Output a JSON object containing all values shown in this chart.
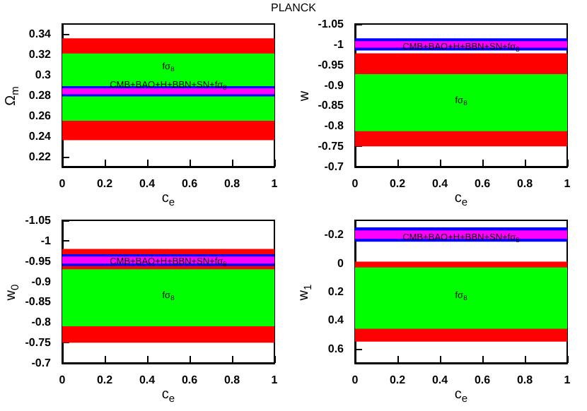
{
  "chart_data": [
    {
      "type": "line",
      "title": "PLANCK",
      "xlabel": "c$_{e}$",
      "ylabel": "Ω$_{m}$",
      "xlim": [
        0,
        1
      ],
      "xticks": [
        0,
        0.2,
        0.4,
        0.6,
        0.8,
        1
      ],
      "ylim": [
        0.21,
        0.35
      ],
      "yticks": [
        0.22,
        0.24,
        0.26,
        0.28,
        0.3,
        0.32,
        0.34
      ],
      "grid": false,
      "bands": [
        {
          "axis": "y",
          "from": 0.236,
          "to": 0.336,
          "color": "#ff0000"
        },
        {
          "axis": "y",
          "from": 0.255,
          "to": 0.321,
          "color": "#00ff00",
          "label": "fσ$_{8}$"
        },
        {
          "axis": "y",
          "from": 0.279,
          "to": 0.289,
          "color": "#0000ff",
          "label": "CMB+BAO+H+BBN+SN+fσ$_{8}$"
        },
        {
          "axis": "y",
          "from": 0.281,
          "to": 0.287,
          "color": "#ff00ff"
        }
      ]
    },
    {
      "type": "line",
      "xlabel": "c$_{e}$",
      "ylabel": "w",
      "xlim": [
        0,
        1
      ],
      "xticks": [
        0,
        0.2,
        0.4,
        0.6,
        0.8,
        1
      ],
      "ylim": [
        -0.7,
        -1.05
      ],
      "yticks": [
        -1.05,
        -1,
        -0.95,
        -0.9,
        -0.85,
        -0.8,
        -0.75,
        -0.7
      ],
      "grid": false,
      "bands": [
        {
          "axis": "y",
          "from": -0.75,
          "to": -0.978,
          "color": "#ff0000"
        },
        {
          "axis": "y",
          "from": -0.787,
          "to": -0.927,
          "color": "#00ff00",
          "label": "fσ$_{8}$"
        },
        {
          "axis": "y",
          "from": -0.985,
          "to": -1.015,
          "color": "#0000ff",
          "label": "CMB+BAO+H+BBN+SN+fσ$_{8}$"
        },
        {
          "axis": "y",
          "from": -0.992,
          "to": -1.008,
          "color": "#ff00ff"
        }
      ]
    },
    {
      "type": "line",
      "xlabel": "c$_{e}$",
      "ylabel": "w$_{0}$",
      "xlim": [
        0,
        1
      ],
      "xticks": [
        0,
        0.2,
        0.4,
        0.6,
        0.8,
        1
      ],
      "ylim": [
        -0.7,
        -1.05
      ],
      "yticks": [
        -1.05,
        -1,
        -0.95,
        -0.9,
        -0.85,
        -0.8,
        -0.75,
        -0.7
      ],
      "grid": false,
      "bands": [
        {
          "axis": "y",
          "from": -0.75,
          "to": -0.98,
          "color": "#ff0000"
        },
        {
          "axis": "y",
          "from": -0.79,
          "to": -0.93,
          "color": "#00ff00",
          "label": "fσ$_{8}$"
        },
        {
          "axis": "y",
          "from": -0.938,
          "to": -0.967,
          "color": "#0000ff",
          "label": "CMB+BAO+H+BBN+SN+fσ$_{8}$"
        },
        {
          "axis": "y",
          "from": -0.944,
          "to": -0.961,
          "color": "#ff00ff"
        }
      ]
    },
    {
      "type": "line",
      "xlabel": "c$_{e}$",
      "ylabel": "w$_{1}$",
      "xlim": [
        0,
        1
      ],
      "xticks": [
        0,
        0.2,
        0.4,
        0.6,
        0.8,
        1
      ],
      "ylim": [
        0.7,
        -0.3
      ],
      "yticks": [
        -0.2,
        0,
        0.2,
        0.4,
        0.6
      ],
      "grid": false,
      "bands": [
        {
          "axis": "y",
          "from": -0.01,
          "to": 0.55,
          "color": "#ff0000"
        },
        {
          "axis": "y",
          "from": 0.03,
          "to": 0.46,
          "color": "#00ff00",
          "label": "fσ$_{8}$"
        },
        {
          "axis": "y",
          "from": -0.25,
          "to": -0.15,
          "color": "#0000ff",
          "label": "CMB+BAO+H+BBN+SN+fσ$_{8}$"
        },
        {
          "axis": "y",
          "from": -0.23,
          "to": -0.17,
          "color": "#ff00ff"
        }
      ]
    }
  ]
}
